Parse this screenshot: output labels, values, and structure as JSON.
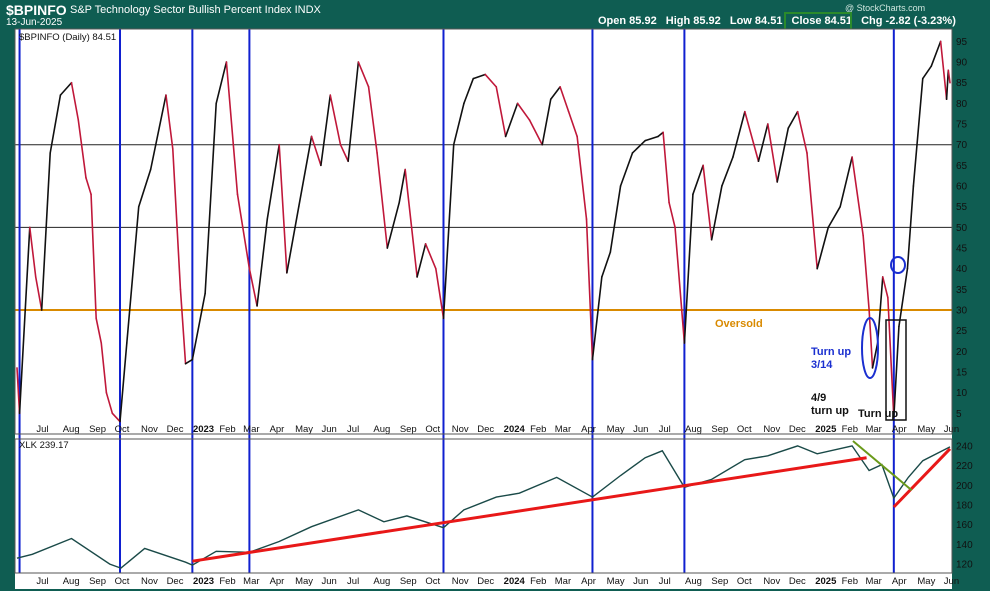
{
  "header": {
    "symbol": "$BPINFO",
    "name": "S&P Technology Sector Bullish Percent Index  INDX",
    "date": "13-Jun-2025",
    "open": "Open 85.92",
    "high": "High 85.92",
    "low": "Low 84.51",
    "close": "Close 84.51",
    "chg": "Chg -2.82 (-3.23%)",
    "watermark": "@ StockCharts.com"
  },
  "colors": {
    "up": "#111111",
    "down": "#c0183a",
    "vline": "#1020d0",
    "oversold": "#d98a00",
    "trend": "#e81818",
    "wedge": "#6a9a1a",
    "xlk": "#1a4a48"
  },
  "chart_data": [
    {
      "type": "line",
      "legend": "$BPINFO (Daily) 84.51",
      "ylim": [
        0,
        98
      ],
      "yticks": [
        5,
        10,
        15,
        20,
        25,
        30,
        35,
        40,
        45,
        50,
        55,
        60,
        65,
        70,
        75,
        80,
        85,
        90,
        95
      ],
      "hlines": [
        70,
        50
      ],
      "oversold": {
        "y": 30,
        "label": "Oversold"
      },
      "x_labels": [
        "Jul",
        "Aug",
        "Sep",
        "Oct",
        "Nov",
        "Dec",
        "2023",
        "Feb",
        "Mar",
        "Apr",
        "May",
        "Jun",
        "Jul",
        "Aug",
        "Sep",
        "Oct",
        "Nov",
        "Dec",
        "2024",
        "Feb",
        "Mar",
        "Apr",
        "May",
        "Jun",
        "Jul",
        "Aug",
        "Sep",
        "Oct",
        "Nov",
        "Dec",
        "2025",
        "Feb",
        "Mar",
        "Apr",
        "May",
        "Jun"
      ],
      "x_start": "2022-06-13",
      "x_end": "2025-06-13",
      "vlines": [
        "2022-06-16",
        "2022-10-12",
        "2023-01-05",
        "2023-03-13",
        "2023-10-27",
        "2024-04-19",
        "2024-08-05",
        "2025-04-08"
      ],
      "series": [
        {
          "points": [
            [
              "2022-06-13",
              16
            ],
            [
              "2022-06-16",
              5
            ],
            [
              "2022-06-28",
              50
            ],
            [
              "2022-07-05",
              38
            ],
            [
              "2022-07-12",
              30
            ],
            [
              "2022-07-22",
              68
            ],
            [
              "2022-08-03",
              82
            ],
            [
              "2022-08-16",
              85
            ],
            [
              "2022-08-24",
              76
            ],
            [
              "2022-09-02",
              62
            ],
            [
              "2022-09-08",
              58
            ],
            [
              "2022-09-14",
              28
            ],
            [
              "2022-09-20",
              22
            ],
            [
              "2022-09-26",
              10
            ],
            [
              "2022-10-03",
              5
            ],
            [
              "2022-10-12",
              3
            ],
            [
              "2022-10-20",
              22
            ],
            [
              "2022-11-03",
              55
            ],
            [
              "2022-11-17",
              64
            ],
            [
              "2022-12-05",
              82
            ],
            [
              "2022-12-13",
              69
            ],
            [
              "2022-12-22",
              35
            ],
            [
              "2022-12-28",
              17
            ],
            [
              "2023-01-05",
              18
            ],
            [
              "2023-01-20",
              34
            ],
            [
              "2023-02-02",
              80
            ],
            [
              "2023-02-14",
              90
            ],
            [
              "2023-02-27",
              58
            ],
            [
              "2023-03-13",
              40
            ],
            [
              "2023-03-22",
              31
            ],
            [
              "2023-04-03",
              52
            ],
            [
              "2023-04-17",
              70
            ],
            [
              "2023-04-26",
              39
            ],
            [
              "2023-05-10",
              55
            ],
            [
              "2023-05-25",
              72
            ],
            [
              "2023-06-05",
              65
            ],
            [
              "2023-06-16",
              82
            ],
            [
              "2023-06-28",
              70
            ],
            [
              "2023-07-07",
              66
            ],
            [
              "2023-07-19",
              90
            ],
            [
              "2023-07-31",
              84
            ],
            [
              "2023-08-10",
              68
            ],
            [
              "2023-08-22",
              45
            ],
            [
              "2023-09-05",
              56
            ],
            [
              "2023-09-12",
              64
            ],
            [
              "2023-09-26",
              38
            ],
            [
              "2023-10-06",
              46
            ],
            [
              "2023-10-18",
              40
            ],
            [
              "2023-10-27",
              28
            ],
            [
              "2023-11-08",
              70
            ],
            [
              "2023-11-20",
              80
            ],
            [
              "2023-12-01",
              86
            ],
            [
              "2023-12-15",
              87
            ],
            [
              "2023-12-28",
              84
            ],
            [
              "2024-01-08",
              72
            ],
            [
              "2024-01-22",
              80
            ],
            [
              "2024-02-05",
              76
            ],
            [
              "2024-02-20",
              70
            ],
            [
              "2024-03-01",
              81
            ],
            [
              "2024-03-12",
              84
            ],
            [
              "2024-03-22",
              78
            ],
            [
              "2024-04-01",
              72
            ],
            [
              "2024-04-12",
              52
            ],
            [
              "2024-04-19",
              18
            ],
            [
              "2024-04-30",
              38
            ],
            [
              "2024-05-10",
              44
            ],
            [
              "2024-05-22",
              60
            ],
            [
              "2024-06-05",
              68
            ],
            [
              "2024-06-20",
              71
            ],
            [
              "2024-07-05",
              72
            ],
            [
              "2024-07-11",
              73
            ],
            [
              "2024-07-18",
              56
            ],
            [
              "2024-07-25",
              50
            ],
            [
              "2024-08-05",
              22
            ],
            [
              "2024-08-15",
              58
            ],
            [
              "2024-08-27",
              65
            ],
            [
              "2024-09-06",
              47
            ],
            [
              "2024-09-18",
              60
            ],
            [
              "2024-10-01",
              67
            ],
            [
              "2024-10-15",
              78
            ],
            [
              "2024-10-31",
              66
            ],
            [
              "2024-11-11",
              75
            ],
            [
              "2024-11-22",
              61
            ],
            [
              "2024-12-05",
              74
            ],
            [
              "2024-12-16",
              78
            ],
            [
              "2024-12-27",
              68
            ],
            [
              "2025-01-08",
              40
            ],
            [
              "2025-01-21",
              50
            ],
            [
              "2025-02-04",
              55
            ],
            [
              "2025-02-18",
              67
            ],
            [
              "2025-03-03",
              48
            ],
            [
              "2025-03-10",
              30
            ],
            [
              "2025-03-14",
              16
            ],
            [
              "2025-03-20",
              22
            ],
            [
              "2025-03-26",
              38
            ],
            [
              "2025-04-01",
              33
            ],
            [
              "2025-04-08",
              4
            ],
            [
              "2025-04-14",
              26
            ],
            [
              "2025-04-24",
              40
            ],
            [
              "2025-05-01",
              60
            ],
            [
              "2025-05-12",
              86
            ],
            [
              "2025-05-22",
              89
            ],
            [
              "2025-06-02",
              95
            ],
            [
              "2025-06-09",
              81
            ],
            [
              "2025-06-11",
              88
            ],
            [
              "2025-06-13",
              85
            ]
          ]
        }
      ]
    },
    {
      "type": "line",
      "legend": "XLK 239.17",
      "ylim": [
        111,
        247
      ],
      "yticks": [
        120,
        140,
        160,
        180,
        200,
        220,
        240
      ],
      "series": [
        {
          "points": [
            [
              "2022-06-13",
              126
            ],
            [
              "2022-07-01",
              130
            ],
            [
              "2022-08-16",
              146
            ],
            [
              "2022-09-30",
              120
            ],
            [
              "2022-10-13",
              116
            ],
            [
              "2022-11-10",
              136
            ],
            [
              "2022-12-28",
              122
            ],
            [
              "2023-01-05",
              119
            ],
            [
              "2023-02-02",
              133
            ],
            [
              "2023-03-13",
              132
            ],
            [
              "2023-04-17",
              143
            ],
            [
              "2023-05-25",
              158
            ],
            [
              "2023-07-19",
              175
            ],
            [
              "2023-08-18",
              163
            ],
            [
              "2023-09-14",
              169
            ],
            [
              "2023-10-27",
              157
            ],
            [
              "2023-11-20",
              175
            ],
            [
              "2023-12-28",
              188
            ],
            [
              "2024-01-24",
              192
            ],
            [
              "2024-03-08",
              208
            ],
            [
              "2024-04-19",
              188
            ],
            [
              "2024-05-22",
              210
            ],
            [
              "2024-06-20",
              228
            ],
            [
              "2024-07-10",
              235
            ],
            [
              "2024-08-05",
              198
            ],
            [
              "2024-09-06",
              206
            ],
            [
              "2024-10-15",
              226
            ],
            [
              "2024-11-11",
              230
            ],
            [
              "2024-12-16",
              240
            ],
            [
              "2025-01-08",
              232
            ],
            [
              "2025-02-18",
              240
            ],
            [
              "2025-03-10",
              215
            ],
            [
              "2025-03-25",
              221
            ],
            [
              "2025-04-08",
              187
            ],
            [
              "2025-04-25",
              208
            ],
            [
              "2025-05-12",
              225
            ],
            [
              "2025-06-13",
              239
            ]
          ]
        }
      ],
      "trendlines": [
        {
          "from": [
            "2023-01-05",
            123
          ],
          "to": [
            "2025-03-07",
            228
          ],
          "color": "trend"
        },
        {
          "from": [
            "2025-04-08",
            178
          ],
          "to": [
            "2025-06-13",
            237
          ],
          "color": "trend"
        },
        {
          "from": [
            "2025-02-19",
            245
          ],
          "to": [
            "2025-04-29",
            195
          ],
          "color": "wedge"
        }
      ]
    }
  ],
  "annotations": {
    "turnup_1": "Turn up",
    "turnup_2": "3/14",
    "apr9_1": "4/9",
    "apr9_2": "turn up",
    "turnup_box": "Turn up"
  }
}
